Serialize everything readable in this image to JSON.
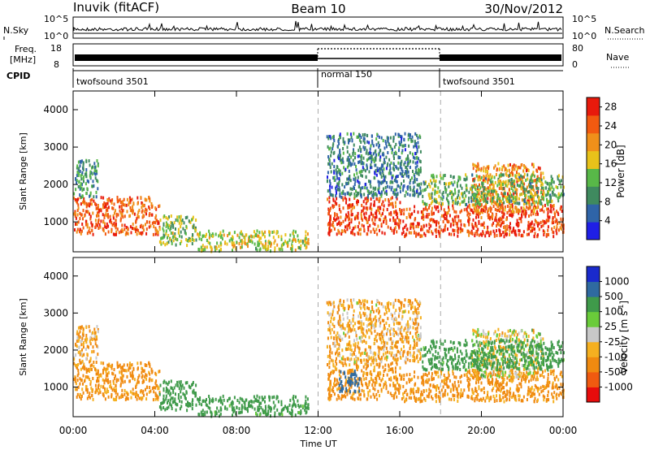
{
  "header": {
    "station": "Inuvik (fitACF)",
    "beam": "Beam 10",
    "date": "30/Nov/2012"
  },
  "strips": {
    "nsky_label": "N.Sky",
    "nsky_ticks": [
      "10^5",
      "10^0"
    ],
    "nsearch_label": "N.Search",
    "nsearch_ticks": [
      "10^5",
      "10^0"
    ],
    "freq_label": "Freq.",
    "freq_unit": "[MHz]",
    "freq_ticks": [
      "18",
      "8"
    ],
    "nave_label": "Nave",
    "nave_ticks": [
      "80",
      "0"
    ],
    "cpid_label": "CPID",
    "cpid_segments": [
      {
        "start": 0,
        "end": 12,
        "label": "twofsound 3501"
      },
      {
        "start": 12,
        "end": 18,
        "label": "normal 150"
      },
      {
        "start": 18,
        "end": 24,
        "label": "twofsound 3501"
      }
    ]
  },
  "colors": {
    "power_scale": [
      "#1f1fe6",
      "#2f64a8",
      "#3f8a5f",
      "#58b848",
      "#e8c21a",
      "#f0901a",
      "#f25a10",
      "#e81a0c"
    ],
    "velocity_scale": [
      "#e80c0c",
      "#f05a10",
      "#f08a10",
      "#f5b020",
      "#c8c8c8",
      "#6acc3a",
      "#3f9a4a",
      "#2f6aa0",
      "#1a2acc"
    ]
  },
  "chart_data": [
    {
      "type": "heatmap",
      "title": "",
      "xlabel": "Time UT",
      "ylabel": "Slant Range [km]",
      "x_ticks": [
        "00:00",
        "04:00",
        "08:00",
        "12:00",
        "16:00",
        "20:00",
        "00:00"
      ],
      "y_ticks": [
        1000,
        2000,
        3000,
        4000
      ],
      "xlim": [
        0,
        24
      ],
      "ylim": [
        200,
        4500
      ],
      "colorbar_label": "Power [dB]",
      "colorbar_ticks": [
        4,
        8,
        12,
        16,
        20,
        24,
        28
      ],
      "colorbar_range": [
        0,
        30
      ],
      "echo_regions": [
        {
          "t0": 0.0,
          "t1": 4.2,
          "r0": 700,
          "r1": 1700,
          "value": 24
        },
        {
          "t0": 0.0,
          "t1": 1.2,
          "r0": 1700,
          "r1": 2700,
          "value": 10
        },
        {
          "t0": 4.2,
          "t1": 6.0,
          "r0": 400,
          "r1": 1200,
          "value": 14
        },
        {
          "t0": 6.0,
          "t1": 11.5,
          "r0": 250,
          "r1": 800,
          "value": 16
        },
        {
          "t0": 12.4,
          "t1": 16.0,
          "r0": 700,
          "r1": 1700,
          "value": 26
        },
        {
          "t0": 12.4,
          "t1": 17.0,
          "r0": 1700,
          "r1": 3400,
          "value": 8
        },
        {
          "t0": 16.0,
          "t1": 24.0,
          "r0": 650,
          "r1": 1500,
          "value": 26
        },
        {
          "t0": 19.5,
          "t1": 23.0,
          "r0": 1300,
          "r1": 2600,
          "value": 22
        },
        {
          "t0": 17.0,
          "t1": 24.0,
          "r0": 1500,
          "r1": 2300,
          "value": 12
        }
      ]
    },
    {
      "type": "heatmap",
      "title": "",
      "xlabel": "Time UT",
      "ylabel": "Slant Range [km]",
      "x_ticks": [
        "00:00",
        "04:00",
        "08:00",
        "12:00",
        "16:00",
        "20:00",
        "00:00"
      ],
      "y_ticks": [
        1000,
        2000,
        3000,
        4000
      ],
      "xlim": [
        0,
        24
      ],
      "ylim": [
        200,
        4500
      ],
      "colorbar_label": "Velocity [m s",
      "colorbar_label_exp": "-1",
      "colorbar_label_end": "]",
      "colorbar_ticks": [
        1000,
        500,
        100,
        25,
        -25,
        -100,
        -500,
        -1000
      ],
      "echo_regions": [
        {
          "t0": 0.0,
          "t1": 4.2,
          "r0": 700,
          "r1": 1700,
          "value": -150
        },
        {
          "t0": 0.0,
          "t1": 1.2,
          "r0": 1700,
          "r1": 2700,
          "value": -100
        },
        {
          "t0": 4.2,
          "t1": 6.0,
          "r0": 400,
          "r1": 1200,
          "value": 300
        },
        {
          "t0": 6.0,
          "t1": 11.5,
          "r0": 250,
          "r1": 800,
          "value": 200
        },
        {
          "t0": 12.4,
          "t1": 16.0,
          "r0": 700,
          "r1": 1700,
          "value": -150
        },
        {
          "t0": 13.0,
          "t1": 14.0,
          "r0": 900,
          "r1": 1500,
          "value": 800
        },
        {
          "t0": 12.4,
          "t1": 17.0,
          "r0": 1700,
          "r1": 3400,
          "value": -80
        },
        {
          "t0": 16.0,
          "t1": 24.0,
          "r0": 650,
          "r1": 1500,
          "value": -150
        },
        {
          "t0": 19.5,
          "t1": 23.0,
          "r0": 1300,
          "r1": 2600,
          "value": 0
        },
        {
          "t0": 17.0,
          "t1": 24.0,
          "r0": 1500,
          "r1": 2300,
          "value": 200
        }
      ]
    }
  ]
}
